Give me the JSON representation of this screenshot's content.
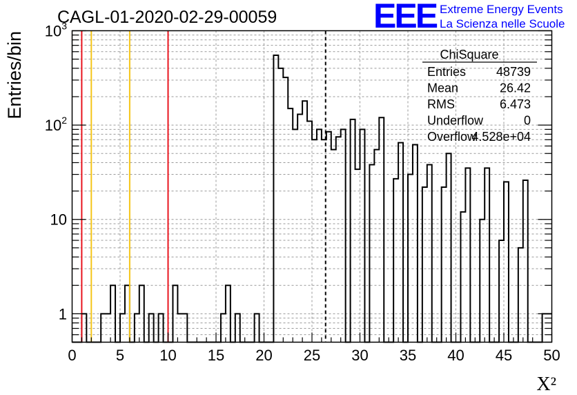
{
  "header": {
    "run_title": "CAGL-01-2020-02-29-00059",
    "logo_text": "EEE",
    "logo_line1": "Extreme Energy Events",
    "logo_line2": "La Scienza nelle Scuole",
    "logo_color": "#0000ff"
  },
  "stats": {
    "title": "ChiSquare",
    "rows": [
      {
        "label": "Entries",
        "value": "48739"
      },
      {
        "label": "Mean",
        "value": "26.42"
      },
      {
        "label": "RMS",
        "value": "6.473"
      },
      {
        "label": "Underflow",
        "value": "0"
      },
      {
        "label": "Overflow",
        "value": "4.528e+04"
      }
    ]
  },
  "chart_data": {
    "type": "bar",
    "style": "step-histogram",
    "title": "CAGL-01-2020-02-29-00059",
    "xlabel": "X²",
    "ylabel": "Entries/bin",
    "xlim": [
      0,
      50
    ],
    "ylim": [
      0.5,
      1000
    ],
    "yscale": "log",
    "grid": true,
    "bin_width": 0.5,
    "x_ticks": [
      "0",
      "5",
      "10",
      "15",
      "20",
      "25",
      "30",
      "35",
      "40",
      "45",
      "50"
    ],
    "y_ticks": [
      {
        "value": 1,
        "label": "1"
      },
      {
        "value": 10,
        "label": "10"
      },
      {
        "value": 100,
        "label": "10²"
      },
      {
        "value": 1000,
        "label": "10³"
      }
    ],
    "bins": [
      {
        "x": 1.0,
        "y": 1
      },
      {
        "x": 3.0,
        "y": 1
      },
      {
        "x": 3.5,
        "y": 1
      },
      {
        "x": 4.0,
        "y": 2
      },
      {
        "x": 5.0,
        "y": 1
      },
      {
        "x": 5.5,
        "y": 2
      },
      {
        "x": 6.5,
        "y": 1
      },
      {
        "x": 7.0,
        "y": 2
      },
      {
        "x": 8.0,
        "y": 1
      },
      {
        "x": 9.0,
        "y": 1
      },
      {
        "x": 10.5,
        "y": 2
      },
      {
        "x": 11.0,
        "y": 1
      },
      {
        "x": 11.5,
        "y": 1
      },
      {
        "x": 15.5,
        "y": 1
      },
      {
        "x": 16.0,
        "y": 2
      },
      {
        "x": 17.0,
        "y": 1
      },
      {
        "x": 19.0,
        "y": 1
      },
      {
        "x": 21.0,
        "y": 550
      },
      {
        "x": 21.5,
        "y": 400
      },
      {
        "x": 22.0,
        "y": 320
      },
      {
        "x": 22.5,
        "y": 150
      },
      {
        "x": 23.0,
        "y": 90
      },
      {
        "x": 23.5,
        "y": 130
      },
      {
        "x": 24.0,
        "y": 180
      },
      {
        "x": 24.5,
        "y": 110
      },
      {
        "x": 25.0,
        "y": 70
      },
      {
        "x": 25.5,
        "y": 90
      },
      {
        "x": 26.0,
        "y": 70
      },
      {
        "x": 26.5,
        "y": 85
      },
      {
        "x": 27.0,
        "y": 55
      },
      {
        "x": 27.5,
        "y": 75
      },
      {
        "x": 28.0,
        "y": 90
      },
      {
        "x": 29.0,
        "y": 115
      },
      {
        "x": 29.5,
        "y": 34
      },
      {
        "x": 30.0,
        "y": 90
      },
      {
        "x": 31.0,
        "y": 38
      },
      {
        "x": 31.5,
        "y": 55
      },
      {
        "x": 32.0,
        "y": 120
      },
      {
        "x": 33.5,
        "y": 27
      },
      {
        "x": 34.0,
        "y": 65
      },
      {
        "x": 35.0,
        "y": 30
      },
      {
        "x": 35.5,
        "y": 62
      },
      {
        "x": 36.5,
        "y": 22
      },
      {
        "x": 37.0,
        "y": 38
      },
      {
        "x": 38.5,
        "y": 22
      },
      {
        "x": 39.0,
        "y": 50
      },
      {
        "x": 40.5,
        "y": 12
      },
      {
        "x": 41.0,
        "y": 35
      },
      {
        "x": 42.5,
        "y": 10
      },
      {
        "x": 43.0,
        "y": 35
      },
      {
        "x": 44.5,
        "y": 6
      },
      {
        "x": 45.0,
        "y": 25
      },
      {
        "x": 46.5,
        "y": 5
      },
      {
        "x": 47.0,
        "y": 26
      },
      {
        "x": 49.0,
        "y": 1
      },
      {
        "x": 49.5,
        "y": 1
      }
    ],
    "cut_lines": [
      {
        "x": 1,
        "color": "#e8141e",
        "style": "solid"
      },
      {
        "x": 2,
        "color": "#f5c518",
        "style": "solid"
      },
      {
        "x": 6,
        "color": "#f5c518",
        "style": "solid"
      },
      {
        "x": 10,
        "color": "#e8141e",
        "style": "solid"
      },
      {
        "x": 26.42,
        "color": "#000000",
        "style": "dashed"
      }
    ]
  }
}
